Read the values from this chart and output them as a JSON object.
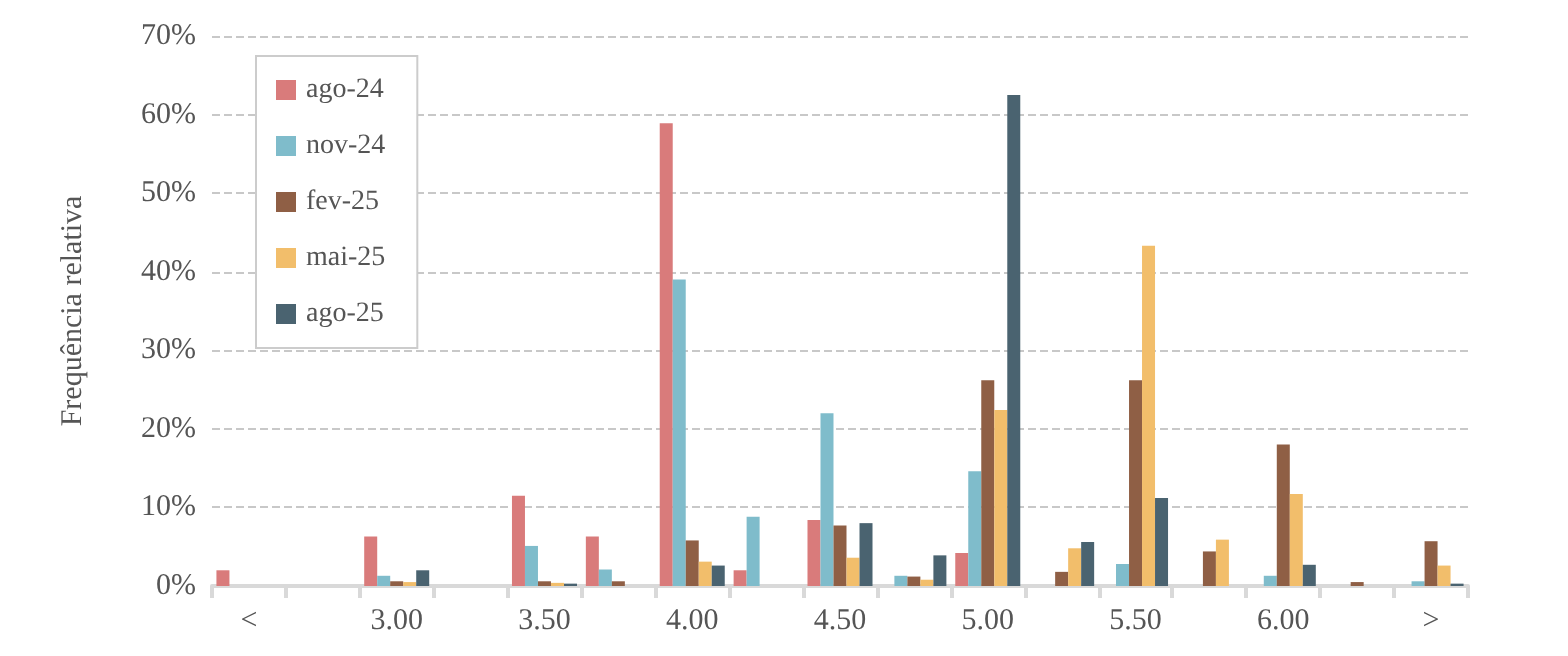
{
  "chart_data": {
    "type": "bar",
    "ylabel": "Frequência relativa",
    "categories": [
      "<",
      null,
      "3.00",
      null,
      "3.50",
      null,
      "4.00",
      null,
      "4.50",
      null,
      "5.00",
      null,
      "5.50",
      null,
      "6.00",
      null,
      ">"
    ],
    "series": [
      {
        "name": "ago-24",
        "color": "#d97b7b",
        "values": [
          2.0,
          0,
          6.3,
          0,
          11.5,
          6.3,
          58.9,
          2.0,
          8.4,
          0,
          4.2,
          0,
          0,
          0,
          0,
          0,
          0
        ]
      },
      {
        "name": "nov-24",
        "color": "#7fbccb",
        "values": [
          0,
          0,
          1.3,
          0,
          5.1,
          2.1,
          39.0,
          8.8,
          22.0,
          1.3,
          14.6,
          0,
          2.8,
          0,
          1.3,
          0,
          0.6
        ]
      },
      {
        "name": "fev-25",
        "color": "#8f5f45",
        "values": [
          0,
          0,
          0.6,
          0,
          0.6,
          0.6,
          5.8,
          0,
          7.7,
          1.2,
          26.2,
          1.8,
          26.2,
          4.4,
          18.0,
          0.5,
          5.7
        ]
      },
      {
        "name": "mai-25",
        "color": "#f2be6b",
        "values": [
          0,
          0,
          0.5,
          0,
          0.4,
          0,
          3.1,
          0,
          3.6,
          0.8,
          22.4,
          4.8,
          43.3,
          5.9,
          11.7,
          0,
          2.6
        ]
      },
      {
        "name": "ago-25",
        "color": "#4a6370",
        "values": [
          0,
          0,
          2.0,
          0,
          0.3,
          0,
          2.6,
          0,
          8.0,
          3.9,
          62.5,
          5.6,
          11.2,
          0,
          2.7,
          0,
          0.3
        ]
      }
    ],
    "ylim": [
      0,
      70
    ],
    "yticks": [
      {
        "value": 0,
        "label": "0%"
      },
      {
        "value": 10,
        "label": "10%"
      },
      {
        "value": 20,
        "label": "20%"
      },
      {
        "value": 30,
        "label": "30%"
      },
      {
        "value": 40,
        "label": "40%"
      },
      {
        "value": 50,
        "label": "50%"
      },
      {
        "value": 60,
        "label": "60%"
      },
      {
        "value": 70,
        "label": "70%"
      }
    ],
    "grid": "y",
    "legend": "top left"
  }
}
